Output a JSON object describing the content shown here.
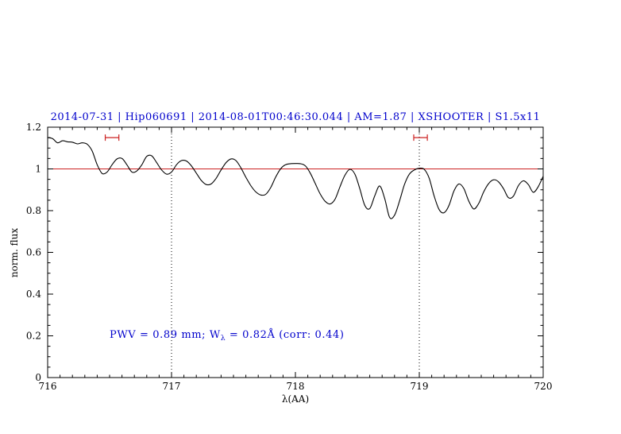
{
  "figure": {
    "background": "#ffffff"
  },
  "colors": {
    "accent_blue": "#0000cc",
    "reference_red": "#cc2222",
    "marker_red": "#cc2222",
    "spectrum_black": "#000000"
  },
  "chart_data": {
    "type": "line",
    "title": "2014-07-31 | Hip060691 | 2014-08-01T00:46:30.044 | AM=1.87 | XSHOOTER | S1.5x11",
    "xlabel": "λ(AA)",
    "ylabel": "norm. flux",
    "xlim": [
      716,
      720
    ],
    "ylim": [
      0,
      1.2
    ],
    "xticks": [
      "716",
      "717",
      "718",
      "719",
      "720"
    ],
    "xtick_values": [
      716,
      717,
      718,
      719,
      720
    ],
    "x_minor_step": 0.1,
    "yticks": [
      "0",
      "0.2",
      "0.4",
      "0.6",
      "0.8",
      "1",
      "1.2"
    ],
    "ytick_values": [
      0,
      0.2,
      0.4,
      0.6,
      0.8,
      1,
      1.2
    ],
    "y_minor_step": 0.05,
    "grid": false,
    "legend": "none",
    "reference_line_y": 1.0,
    "vlines": [
      717,
      719
    ],
    "range_markers": [
      {
        "x_center": 716.52,
        "x_halfwidth": 0.055,
        "y": 1.15
      },
      {
        "x_center": 719.01,
        "x_halfwidth": 0.055,
        "y": 1.15
      }
    ],
    "annotation": {
      "prefix": "PWV = 0.89 mm; W",
      "sub": "λ",
      "suffix": " = 0.82Å (corr: 0.44)",
      "x": 716.5,
      "y": 0.19
    },
    "series": [
      {
        "name": "spectrum",
        "x_start": 716.0,
        "x_step": 0.04,
        "y": [
          1.15,
          1.145,
          1.125,
          1.135,
          1.13,
          1.128,
          1.12,
          1.125,
          1.118,
          1.085,
          1.02,
          0.978,
          0.985,
          1.02,
          1.048,
          1.05,
          1.02,
          0.985,
          0.99,
          1.02,
          1.06,
          1.063,
          1.03,
          0.995,
          0.975,
          0.985,
          1.02,
          1.04,
          1.038,
          1.015,
          0.98,
          0.945,
          0.925,
          0.928,
          0.955,
          0.995,
          1.03,
          1.048,
          1.04,
          1.005,
          0.96,
          0.92,
          0.89,
          0.875,
          0.878,
          0.91,
          0.96,
          1.0,
          1.02,
          1.025,
          1.026,
          1.025,
          1.015,
          0.98,
          0.93,
          0.88,
          0.845,
          0.832,
          0.855,
          0.915,
          0.97,
          0.998,
          0.975,
          0.905,
          0.825,
          0.81,
          0.87,
          0.918,
          0.86,
          0.768,
          0.778,
          0.845,
          0.925,
          0.975,
          0.995,
          1.003,
          0.998,
          0.955,
          0.87,
          0.805,
          0.79,
          0.825,
          0.895,
          0.928,
          0.905,
          0.845,
          0.808,
          0.835,
          0.89,
          0.93,
          0.948,
          0.938,
          0.905,
          0.862,
          0.87,
          0.92,
          0.943,
          0.925,
          0.888,
          0.915,
          0.965
        ]
      }
    ]
  }
}
